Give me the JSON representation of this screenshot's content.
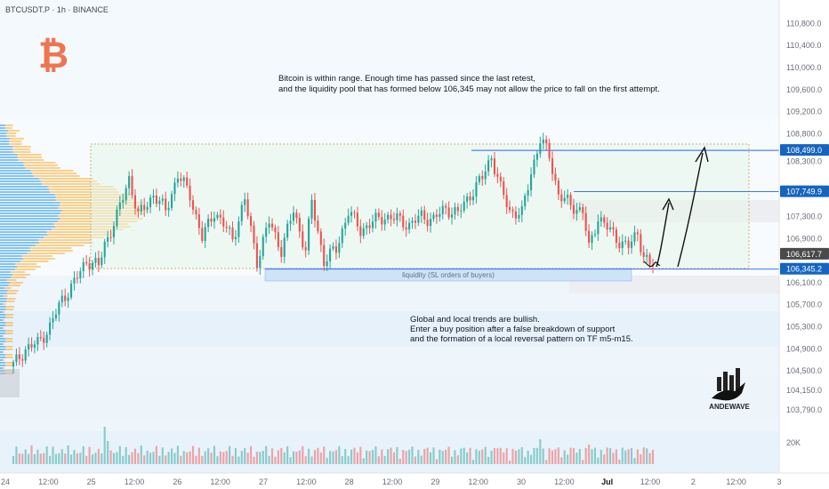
{
  "header": {
    "symbol_line": "BTCUSDT.P · 1h · BINANCE"
  },
  "annotations": {
    "top_note_line1": "Bitcoin is within range. Enough time has passed since the last retest,",
    "top_note_line2": "and the liquidity pool that has formed below 106,345 may not allow the price to fall on the first attempt.",
    "liquidity_label": "liquidity (SL orders of buyers)",
    "bottom_note_line1": "Global and local trends are bullish.",
    "bottom_note_line2": "Enter a buy position after a false breakdown of support",
    "bottom_note_line3": "and the formation of a local reversal pattern on TF m5-m15."
  },
  "logo": {
    "text": "ANDEWAVE"
  },
  "colors": {
    "up": "#26a69a",
    "down": "#ef5350",
    "range_fill": "#e8f5e9",
    "range_border": "#c9b46e",
    "liquidity_fill": "#cfe3f7",
    "level_line": "#2962ff",
    "badge_blue": "#1565c0",
    "badge_dark": "#4a4a4a",
    "btc_orange": "#f7931a",
    "profile_blue": "#2196f3",
    "profile_orange": "#ff9800"
  },
  "chart_data": {
    "type": "candlestick",
    "y_axis": {
      "min": 103600,
      "max": 111000,
      "ticks": [
        {
          "value": 110800,
          "label": "110,800.0"
        },
        {
          "value": 110400,
          "label": "110,400.0"
        },
        {
          "value": 110000,
          "label": "110,000.0"
        },
        {
          "value": 109600,
          "label": "109,600.0"
        },
        {
          "value": 109200,
          "label": "109,200.0"
        },
        {
          "value": 108800,
          "label": "108,800.0"
        },
        {
          "value": 108300,
          "label": "108,300.0"
        },
        {
          "value": 107300,
          "label": "107,300.0"
        },
        {
          "value": 106900,
          "label": "106,900.0"
        },
        {
          "value": 106100,
          "label": "106,100.0"
        },
        {
          "value": 105700,
          "label": "105,700.0"
        },
        {
          "value": 105300,
          "label": "105,300.0"
        },
        {
          "value": 104900,
          "label": "104,900.0"
        },
        {
          "value": 104500,
          "label": "104,500.0"
        },
        {
          "value": 104150,
          "label": "104,150.0"
        },
        {
          "value": 103790,
          "label": "103,790.0"
        }
      ]
    },
    "x_axis_ticks": [
      "24",
      "12:00",
      "25",
      "12:00",
      "26",
      "12:00",
      "27",
      "12:00",
      "28",
      "12:00",
      "29",
      "12:00",
      "30",
      "12:00",
      "Jul",
      "12:00",
      "2",
      "12:00",
      "3"
    ],
    "price_labels": [
      {
        "value": 108499.0,
        "label": "108,499.0",
        "style": "blue"
      },
      {
        "value": 107749.9,
        "label": "107,749.9",
        "style": "blue"
      },
      {
        "value": 106617.7,
        "label": "106,617.7",
        "style": "dark"
      },
      {
        "value": 106345.2,
        "label": "106,345.2",
        "style": "blue"
      }
    ],
    "range": {
      "low": 106345.2,
      "high": 108499.0
    },
    "liquidity_zone": {
      "low": 106100,
      "high": 106345.2
    },
    "volume_axis_label": "20K",
    "price_anchors": [
      [
        0,
        104600
      ],
      [
        4,
        104900
      ],
      [
        8,
        105000
      ],
      [
        12,
        105300
      ],
      [
        16,
        105800
      ],
      [
        20,
        106100
      ],
      [
        24,
        106500
      ],
      [
        28,
        106400
      ],
      [
        30,
        106800
      ],
      [
        34,
        107300
      ],
      [
        38,
        108000
      ],
      [
        41,
        107300
      ],
      [
        46,
        107700
      ],
      [
        50,
        107400
      ],
      [
        54,
        108050
      ],
      [
        58,
        107700
      ],
      [
        62,
        106900
      ],
      [
        66,
        107400
      ],
      [
        72,
        106900
      ],
      [
        76,
        107600
      ],
      [
        80,
        106500
      ],
      [
        84,
        107200
      ],
      [
        88,
        106700
      ],
      [
        92,
        107400
      ],
      [
        96,
        106700
      ],
      [
        98,
        107550
      ],
      [
        102,
        106500
      ],
      [
        106,
        106700
      ],
      [
        110,
        107400
      ],
      [
        114,
        107050
      ],
      [
        118,
        107200
      ],
      [
        122,
        107300
      ],
      [
        126,
        107250
      ],
      [
        130,
        107150
      ],
      [
        134,
        107300
      ],
      [
        138,
        107250
      ],
      [
        142,
        107450
      ],
      [
        146,
        107350
      ],
      [
        150,
        107700
      ],
      [
        154,
        108000
      ],
      [
        157,
        108400
      ],
      [
        160,
        107800
      ],
      [
        163,
        107400
      ],
      [
        167,
        107350
      ],
      [
        170,
        108100
      ],
      [
        173,
        108700
      ],
      [
        176,
        108400
      ],
      [
        179,
        107700
      ],
      [
        183,
        107500
      ],
      [
        187,
        107400
      ],
      [
        189,
        106700
      ],
      [
        192,
        107300
      ],
      [
        195,
        107100
      ],
      [
        198,
        106900
      ],
      [
        202,
        106750
      ],
      [
        205,
        107000
      ],
      [
        207,
        106600
      ],
      [
        209,
        106400
      ],
      [
        210,
        106430
      ]
    ]
  }
}
